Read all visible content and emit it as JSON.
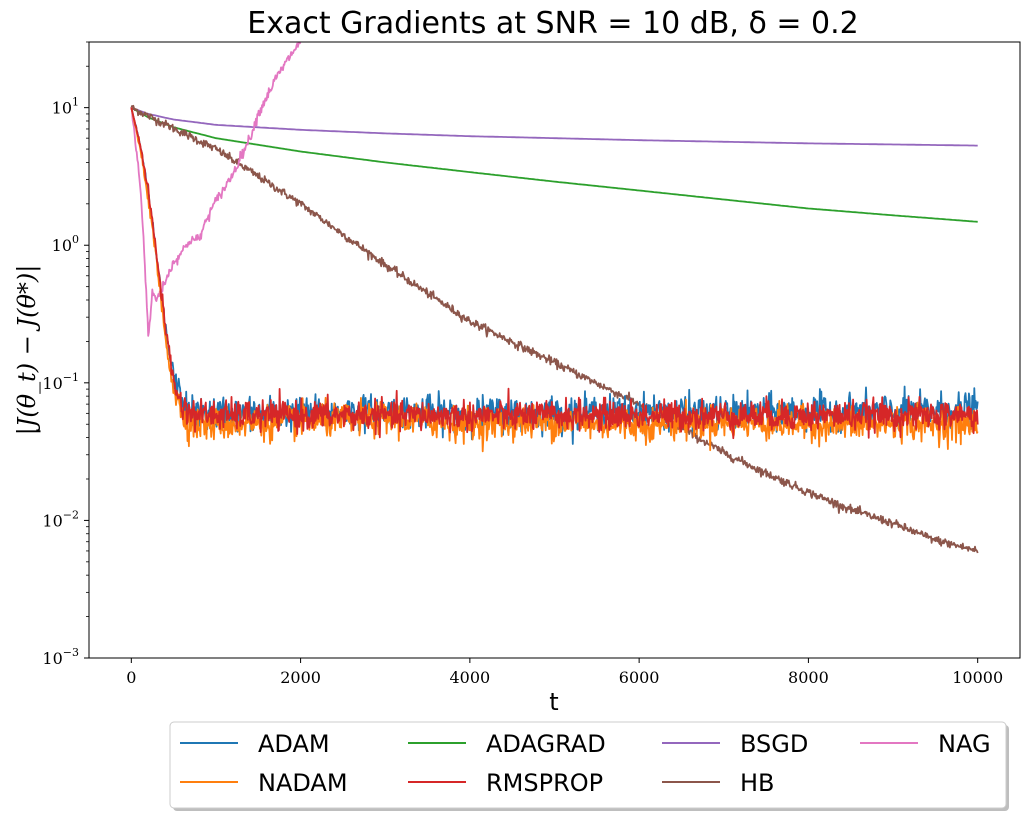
{
  "chart_data": {
    "type": "line",
    "title": "Exact Gradients at SNR = 10 dB, δ = 0.2",
    "xlabel": "t",
    "ylabel": "|J(θ_t) − J(θ*)|",
    "xlim": [
      -500,
      10500
    ],
    "ylim": [
      0.001,
      30
    ],
    "yscale": "log",
    "grid": false,
    "legend_position": "below",
    "legend_columns": 4,
    "x_ticks": [
      {
        "value": 0,
        "label": "0"
      },
      {
        "value": 2000,
        "label": "2000"
      },
      {
        "value": 4000,
        "label": "4000"
      },
      {
        "value": 6000,
        "label": "6000"
      },
      {
        "value": 8000,
        "label": "8000"
      },
      {
        "value": 10000,
        "label": "10000"
      }
    ],
    "y_ticks": [
      {
        "value": 0.001,
        "base": "10",
        "exp": "−3"
      },
      {
        "value": 0.01,
        "base": "10",
        "exp": "−2"
      },
      {
        "value": 0.1,
        "base": "10",
        "exp": "−1"
      },
      {
        "value": 1,
        "base": "10",
        "exp": "0"
      },
      {
        "value": 10,
        "base": "10",
        "exp": "1"
      }
    ],
    "series": [
      {
        "name": "ADAM",
        "color": "#1f77b4",
        "x": [
          0,
          100,
          200,
          300,
          400,
          500,
          600,
          700,
          1000,
          2000,
          3000,
          4000,
          5000,
          6000,
          7000,
          8000,
          9000,
          10000
        ],
        "y": [
          10,
          5.5,
          2.4,
          0.8,
          0.25,
          0.11,
          0.075,
          0.06,
          0.06,
          0.06,
          0.062,
          0.06,
          0.06,
          0.062,
          0.06,
          0.062,
          0.062,
          0.065
        ],
        "noise": 0.2
      },
      {
        "name": "NADAM",
        "color": "#ff7f0e",
        "x": [
          0,
          100,
          200,
          300,
          400,
          500,
          600,
          700,
          1000,
          2000,
          3000,
          4000,
          5000,
          6000,
          7000,
          8000,
          9000,
          10000
        ],
        "y": [
          10,
          5.2,
          2.2,
          0.75,
          0.22,
          0.09,
          0.06,
          0.05,
          0.05,
          0.052,
          0.055,
          0.05,
          0.052,
          0.05,
          0.052,
          0.05,
          0.05,
          0.05
        ],
        "noise": 0.2
      },
      {
        "name": "ADAGRAD",
        "color": "#2ca02c",
        "x": [
          0,
          200,
          500,
          1000,
          2000,
          3000,
          4000,
          5000,
          6000,
          7000,
          8000,
          9000,
          10000
        ],
        "y": [
          10,
          8.5,
          7.2,
          6.0,
          4.8,
          4.0,
          3.4,
          2.9,
          2.5,
          2.15,
          1.85,
          1.65,
          1.48
        ]
      },
      {
        "name": "RMSPROP",
        "color": "#d62728",
        "x": [
          0,
          100,
          200,
          300,
          400,
          500,
          600,
          700,
          1000,
          2000,
          3000,
          4000,
          5000,
          6000,
          7000,
          8000,
          9000,
          10000
        ],
        "y": [
          10,
          5.6,
          2.5,
          0.85,
          0.27,
          0.1,
          0.068,
          0.06,
          0.058,
          0.058,
          0.058,
          0.058,
          0.058,
          0.058,
          0.058,
          0.058,
          0.058,
          0.058
        ],
        "noise": 0.18
      },
      {
        "name": "BSGD",
        "color": "#9467bd",
        "x": [
          0,
          200,
          500,
          1000,
          2000,
          3000,
          4000,
          5000,
          6000,
          7000,
          8000,
          9000,
          10000
        ],
        "y": [
          10,
          9.0,
          8.2,
          7.5,
          6.9,
          6.5,
          6.2,
          6.0,
          5.8,
          5.65,
          5.5,
          5.4,
          5.3
        ]
      },
      {
        "name": "HB",
        "color": "#8c564b",
        "x": [
          0,
          1000,
          2000,
          3000,
          4000,
          5000,
          6000,
          6500,
          7000,
          7500,
          8000,
          8500,
          9000,
          9500,
          10000
        ],
        "y": [
          10,
          5.0,
          2.0,
          0.72,
          0.28,
          0.14,
          0.07,
          0.047,
          0.031,
          0.022,
          0.016,
          0.012,
          0.0095,
          0.0072,
          0.006
        ],
        "noise": 0.05
      },
      {
        "name": "NAG",
        "color": "#e377c2",
        "x": [
          0,
          100,
          150,
          200,
          250,
          300,
          400,
          500,
          600,
          700,
          800,
          900,
          1000,
          1100,
          1200,
          1300,
          1400,
          1500,
          1600,
          1700,
          1800,
          1900,
          2000
        ],
        "y": [
          10,
          3.0,
          1.0,
          0.22,
          0.45,
          0.4,
          0.55,
          0.75,
          0.9,
          1.1,
          1.1,
          1.6,
          2.1,
          2.6,
          3.3,
          4.5,
          6.0,
          9.0,
          12.0,
          16.0,
          20.0,
          25.0,
          30.0
        ],
        "noise": 0.06
      }
    ]
  }
}
